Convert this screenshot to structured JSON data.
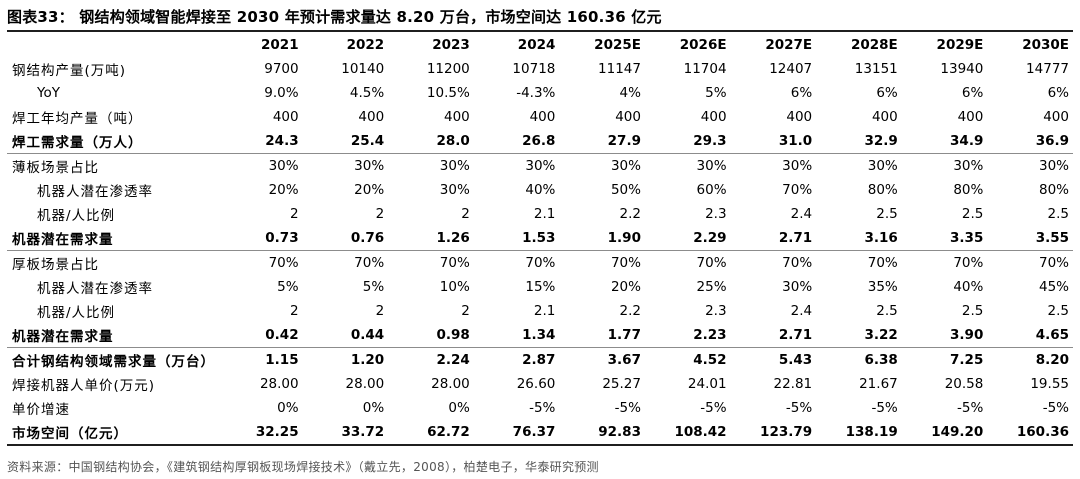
{
  "title": "图表33：  钢结构领域智能焊接至 2030 年预计需求量达 8.20 万台，市场空间达 160.36 亿元",
  "columns": [
    "2021",
    "2022",
    "2023",
    "2024",
    "2025E",
    "2026E",
    "2027E",
    "2028E",
    "2029E",
    "2030E"
  ],
  "rows": [
    {
      "label": "钢结构产量(万吨)",
      "values": [
        "9700",
        "10140",
        "11200",
        "10718",
        "11147",
        "11704",
        "12407",
        "13151",
        "13940",
        "14777"
      ]
    },
    {
      "label": "YoY",
      "values": [
        "9.0%",
        "4.5%",
        "10.5%",
        "-4.3%",
        "4%",
        "5%",
        "6%",
        "6%",
        "6%",
        "6%"
      ]
    },
    {
      "label": "焊工年均产量（吨）",
      "values": [
        "400",
        "400",
        "400",
        "400",
        "400",
        "400",
        "400",
        "400",
        "400",
        "400"
      ]
    },
    {
      "label": "焊工需求量（万人）",
      "values": [
        "24.3",
        "25.4",
        "28.0",
        "26.8",
        "27.9",
        "29.3",
        "31.0",
        "32.9",
        "34.9",
        "36.9"
      ]
    },
    {
      "label": "薄板场景占比",
      "values": [
        "30%",
        "30%",
        "30%",
        "30%",
        "30%",
        "30%",
        "30%",
        "30%",
        "30%",
        "30%"
      ]
    },
    {
      "label": "机器人潜在渗透率",
      "values": [
        "20%",
        "20%",
        "30%",
        "40%",
        "50%",
        "60%",
        "70%",
        "80%",
        "80%",
        "80%"
      ]
    },
    {
      "label": "机器/人比例",
      "values": [
        "2",
        "2",
        "2",
        "2.1",
        "2.2",
        "2.3",
        "2.4",
        "2.5",
        "2.5",
        "2.5"
      ]
    },
    {
      "label": "机器潜在需求量",
      "values": [
        "0.73",
        "0.76",
        "1.26",
        "1.53",
        "1.90",
        "2.29",
        "2.71",
        "3.16",
        "3.35",
        "3.55"
      ]
    },
    {
      "label": "厚板场景占比",
      "values": [
        "70%",
        "70%",
        "70%",
        "70%",
        "70%",
        "70%",
        "70%",
        "70%",
        "70%",
        "70%"
      ]
    },
    {
      "label": "机器人潜在渗透率",
      "values": [
        "5%",
        "5%",
        "10%",
        "15%",
        "20%",
        "25%",
        "30%",
        "35%",
        "40%",
        "45%"
      ]
    },
    {
      "label": "机器/人比例",
      "values": [
        "2",
        "2",
        "2",
        "2.1",
        "2.2",
        "2.3",
        "2.4",
        "2.5",
        "2.5",
        "2.5"
      ]
    },
    {
      "label": "机器潜在需求量",
      "values": [
        "0.42",
        "0.44",
        "0.98",
        "1.34",
        "1.77",
        "2.23",
        "2.71",
        "3.22",
        "3.90",
        "4.65"
      ]
    },
    {
      "label": "合计钢结构领域需求量（万台）",
      "values": [
        "1.15",
        "1.20",
        "2.24",
        "2.87",
        "3.67",
        "4.52",
        "5.43",
        "6.38",
        "7.25",
        "8.20"
      ]
    },
    {
      "label": "焊接机器人单价(万元)",
      "values": [
        "28.00",
        "28.00",
        "28.00",
        "26.60",
        "25.27",
        "24.01",
        "22.81",
        "21.67",
        "20.58",
        "19.55"
      ]
    },
    {
      "label": "单价增速",
      "values": [
        "0%",
        "0%",
        "0%",
        "-5%",
        "-5%",
        "-5%",
        "-5%",
        "-5%",
        "-5%",
        "-5%"
      ]
    },
    {
      "label": "市场空间（亿元）",
      "values": [
        "32.25",
        "33.72",
        "62.72",
        "76.37",
        "92.83",
        "108.42",
        "123.79",
        "138.19",
        "149.20",
        "160.36"
      ]
    }
  ],
  "source": "资料来源：中国钢结构协会，《建筑钢结构厚钢板现场焊接技术》（戴立先，2008），柏楚电子，华泰研究预测"
}
